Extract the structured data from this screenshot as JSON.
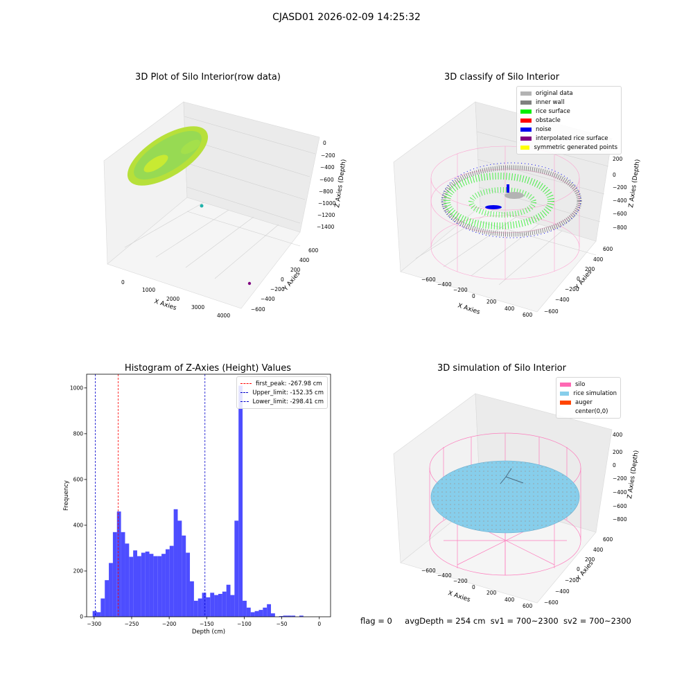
{
  "figure": {
    "title": "CJASD01 2026-02-09 14:25:32"
  },
  "footer": {
    "flag": "flag = 0",
    "avg_depth": "avgDepth = 254 cm",
    "sv1": "sv1 = 700~2300",
    "sv2": "sv2 = 700~2300"
  },
  "colors": {
    "original_data": "#b3b3b3",
    "inner_wall": "#808080",
    "rice_surface": "#00ee00",
    "obstacle": "#ff0000",
    "noise": "#0000ee",
    "interpolated": "#800080",
    "symmetric": "#ffff00",
    "silo": "#ff69b4",
    "rice_sim": "#87ceeb",
    "auger": "#ff4500",
    "hist_bar": "#4d4dff",
    "peak_line": "#ff0000",
    "limit_line": "#0000cc"
  },
  "panel_raw": {
    "title": "3D Plot of Silo Interior(row data)",
    "xlabel": "X Axies",
    "ylabel": "Y Axies",
    "zlabel": "Z Axies (Depth)",
    "x_ticks": [
      "0",
      "1000",
      "2000",
      "3000",
      "4000"
    ],
    "y_ticks": [
      "600",
      "400",
      "200",
      "0",
      "−200",
      "−400",
      "−600"
    ],
    "z_ticks": [
      "0",
      "−200",
      "−400",
      "−600",
      "−800",
      "−1000",
      "−1200",
      "−1400"
    ]
  },
  "panel_classify": {
    "title": "3D classify of Silo Interior",
    "xlabel": "X Axies",
    "ylabel": "Y Axies",
    "zlabel": "Z Axies (Depth)",
    "x_ticks": [
      "−600",
      "−400",
      "−200",
      "0",
      "200",
      "400",
      "600"
    ],
    "y_ticks": [
      "600",
      "400",
      "200",
      "0",
      "−200",
      "−400",
      "−600"
    ],
    "z_ticks": [
      "200",
      "0",
      "−200",
      "−400",
      "−600",
      "−800"
    ],
    "legend": [
      {
        "label": "original data",
        "color_key": "original_data"
      },
      {
        "label": "inner wall",
        "color_key": "inner_wall"
      },
      {
        "label": "rice surface",
        "color_key": "rice_surface"
      },
      {
        "label": "obstacle",
        "color_key": "obstacle"
      },
      {
        "label": "noise",
        "color_key": "noise"
      },
      {
        "label": "interpolated rice surface",
        "color_key": "interpolated"
      },
      {
        "label": "symmetric generated points",
        "color_key": "symmetric"
      }
    ]
  },
  "panel_sim": {
    "title": "3D simulation of Silo Interior",
    "xlabel": "X Axies",
    "ylabel": "Y Axies",
    "zlabel": "Z Axies (Depth)",
    "x_ticks": [
      "−600",
      "−400",
      "−200",
      "0",
      "200",
      "400",
      "600"
    ],
    "y_ticks": [
      "600",
      "400",
      "200",
      "0",
      "−200",
      "−400",
      "−600"
    ],
    "z_ticks": [
      "400",
      "200",
      "0",
      "−200",
      "−400",
      "−600",
      "−800"
    ],
    "legend": [
      {
        "label": "silo",
        "color_key": "silo"
      },
      {
        "label": "rice simulation",
        "color_key": "rice_sim"
      },
      {
        "label": "auger",
        "color_key": "auger"
      },
      {
        "label": "center(0,0)",
        "color_key": ""
      }
    ]
  },
  "chart_data": {
    "type": "bar",
    "title": "Histogram of Z-Axies (Height) Values",
    "xlabel": "Depth (cm)",
    "ylabel": "Frequency",
    "xlim": [
      -310,
      15
    ],
    "ylim": [
      0,
      1060
    ],
    "x_ticks": [
      -300,
      -250,
      -200,
      -150,
      -100,
      -50,
      0
    ],
    "y_ticks": [
      0,
      200,
      400,
      600,
      800,
      1000
    ],
    "bin_width": 5.4,
    "bin_starts": [
      -302,
      -296.6,
      -291.2,
      -285.8,
      -280.4,
      -275,
      -269.6,
      -264.2,
      -258.8,
      -253.4,
      -248,
      -242.6,
      -237.2,
      -231.8,
      -226.4,
      -221,
      -215.6,
      -210.2,
      -204.8,
      -199.4,
      -194,
      -188.6,
      -183.2,
      -177.8,
      -172.4,
      -167,
      -161.6,
      -156.2,
      -150.8,
      -145.4,
      -140,
      -134.6,
      -129.2,
      -123.8,
      -118.4,
      -113,
      -107.6,
      -102.2,
      -96.8,
      -91.4,
      -86,
      -80.6,
      -75.2,
      -69.8,
      -64.4,
      -59,
      -53.6,
      -48.2,
      -42.8,
      -37.4,
      -32,
      -26.6,
      -21.2,
      -15.8,
      -10.4,
      -5,
      0.4
    ],
    "values": [
      25,
      20,
      80,
      160,
      235,
      370,
      460,
      370,
      320,
      262,
      290,
      265,
      280,
      285,
      275,
      265,
      265,
      275,
      295,
      310,
      470,
      420,
      355,
      280,
      155,
      70,
      80,
      105,
      85,
      105,
      95,
      100,
      110,
      140,
      95,
      420,
      1010,
      70,
      40,
      20,
      25,
      30,
      40,
      55,
      15,
      0,
      3,
      5,
      5,
      5,
      0,
      5,
      0,
      0,
      0,
      0,
      0
    ],
    "vlines": [
      {
        "x": -267.98,
        "label": "first_peak: -267.98 cm",
        "color_key": "peak_line"
      },
      {
        "x": -152.35,
        "label": "Upper_limit: -152.35 cm",
        "color_key": "limit_line"
      },
      {
        "x": -298.41,
        "label": "Lower_limit: -298.41 cm",
        "color_key": "limit_line"
      }
    ],
    "legend_position": "upper right",
    "grid": false
  }
}
